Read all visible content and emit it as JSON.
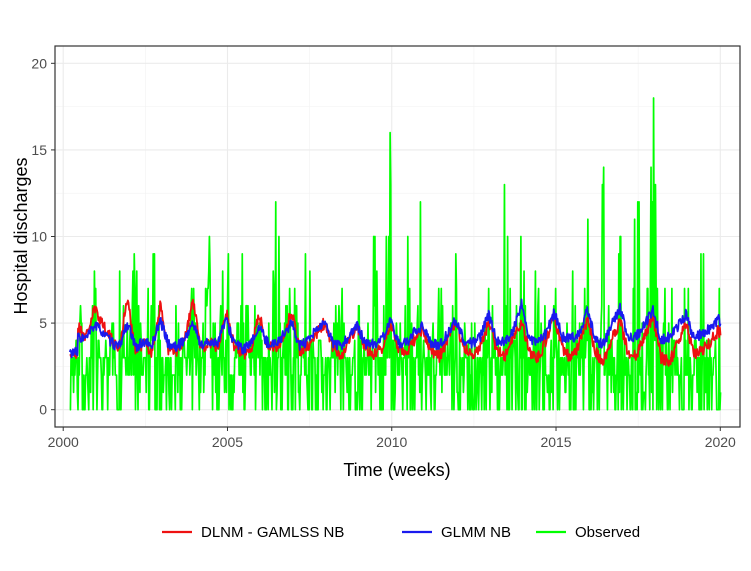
{
  "chart_data": {
    "type": "line",
    "xlabel": "Time (weeks)",
    "ylabel": "Hospital discharges",
    "xlim": [
      1999.75,
      2020.6
    ],
    "ylim": [
      -1,
      21
    ],
    "x_ticks": [
      2000,
      2005,
      2010,
      2015,
      2020
    ],
    "x_tick_labels": [
      "2000",
      "2005",
      "2010",
      "2015",
      "2020"
    ],
    "y_ticks": [
      0,
      5,
      10,
      15,
      20
    ],
    "y_tick_labels": [
      "0",
      "5",
      "10",
      "15",
      "20"
    ],
    "grid": true,
    "legend_position": "bottom",
    "series": [
      {
        "name": "Observed",
        "color": "#00ff00",
        "points_per_year": 4,
        "x_start": 2000.2,
        "values": [
          3,
          10,
          1,
          8,
          1,
          5,
          8,
          6,
          10,
          2,
          11,
          7,
          1,
          7,
          4,
          12,
          4,
          11,
          5,
          13,
          2,
          10,
          4,
          9,
          3,
          14,
          6,
          8,
          5,
          11,
          2,
          8,
          4,
          11,
          1,
          7,
          2,
          12,
          5,
          17,
          3,
          12,
          2,
          16,
          4,
          11,
          1,
          13,
          5,
          7,
          2,
          10,
          3,
          15,
          4,
          12,
          1,
          12,
          5,
          11,
          2,
          10,
          4,
          13,
          3,
          16,
          2,
          11,
          1,
          16,
          5,
          20,
          4,
          10,
          1,
          9,
          2,
          12,
          1,
          8,
          2,
          10,
          3,
          11,
          4,
          12,
          5,
          13,
          2,
          10,
          1,
          12,
          3,
          10,
          1,
          11,
          3,
          13,
          4,
          10,
          5,
          8,
          2,
          11
        ],
        "max": 20
      },
      {
        "name": "DLNM - GAMLSS NB",
        "color": "#ee1111",
        "points_per_year": 4,
        "x_start": 2000.2,
        "values": [
          3.2,
          4.8,
          4.2,
          5.8,
          5.0,
          4.1,
          3.5,
          6.4,
          3.4,
          3.9,
          3.3,
          6.0,
          3.5,
          3.3,
          4.0,
          6.3,
          3.4,
          3.9,
          3.6,
          5.7,
          3.7,
          3.2,
          3.4,
          5.5,
          3.8,
          3.5,
          4.2,
          5.7,
          3.4,
          3.6,
          4.4,
          5.0,
          3.6,
          3.1,
          4.0,
          4.8,
          3.5,
          3.2,
          3.5,
          5.0,
          3.6,
          3.3,
          4.1,
          4.6,
          3.4,
          3.1,
          4.0,
          5.0,
          3.6,
          3.2,
          3.7,
          5.0,
          3.5,
          3.1,
          4.2,
          5.0,
          3.3,
          3.0,
          4.0,
          5.4,
          3.5,
          2.9,
          3.8,
          5.2,
          3.3,
          2.7,
          4.1,
          5.1,
          3.2,
          3.1,
          4.3,
          5.3,
          3.0,
          2.7,
          3.8,
          5.0,
          3.2,
          3.4,
          3.9,
          4.6,
          3.6,
          3.2,
          4.2,
          5.3,
          3.3,
          3.1,
          4.4,
          6.0,
          3.1,
          2.6,
          4.2,
          5.1,
          3.4,
          3.6,
          4.0,
          4.7,
          3.7,
          3.9,
          4.6,
          5.0,
          4.6,
          4.7
        ]
      },
      {
        "name": "GLMM NB",
        "color": "#1a1aee",
        "points_per_year": 4,
        "x_start": 2000.2,
        "values": [
          3.3,
          4.2,
          4.1,
          4.9,
          4.5,
          3.9,
          3.6,
          5.0,
          3.6,
          3.9,
          3.7,
          5.2,
          3.8,
          3.6,
          4.1,
          5.0,
          3.7,
          3.9,
          3.9,
          5.2,
          3.9,
          3.5,
          3.7,
          4.8,
          3.9,
          3.8,
          4.3,
          5.0,
          3.7,
          3.9,
          4.6,
          5.0,
          3.9,
          3.6,
          4.3,
          4.8,
          3.8,
          3.8,
          4.0,
          5.1,
          3.9,
          3.8,
          4.5,
          4.9,
          3.8,
          3.7,
          4.4,
          5.2,
          4.0,
          3.8,
          4.2,
          5.5,
          4.0,
          3.9,
          4.6,
          6.1,
          4.0,
          3.9,
          4.4,
          5.6,
          4.2,
          4.1,
          4.4,
          5.8,
          4.0,
          3.8,
          4.9,
          5.9,
          4.1,
          4.3,
          4.9,
          5.7,
          4.0,
          4.2,
          4.8,
          5.5,
          4.1,
          4.4,
          4.7,
          5.2,
          4.3,
          4.2,
          4.9,
          5.7,
          4.5,
          4.3,
          5.1,
          6.2,
          4.6,
          4.7,
          5.3,
          6.1,
          4.5,
          5.4,
          5.0,
          5.8,
          4.5,
          4.9,
          5.2,
          5.7,
          4.8,
          4.9
        ]
      }
    ],
    "legend_order": [
      "DLNM - GAMLSS NB",
      "GLMM NB",
      "Observed"
    ]
  }
}
